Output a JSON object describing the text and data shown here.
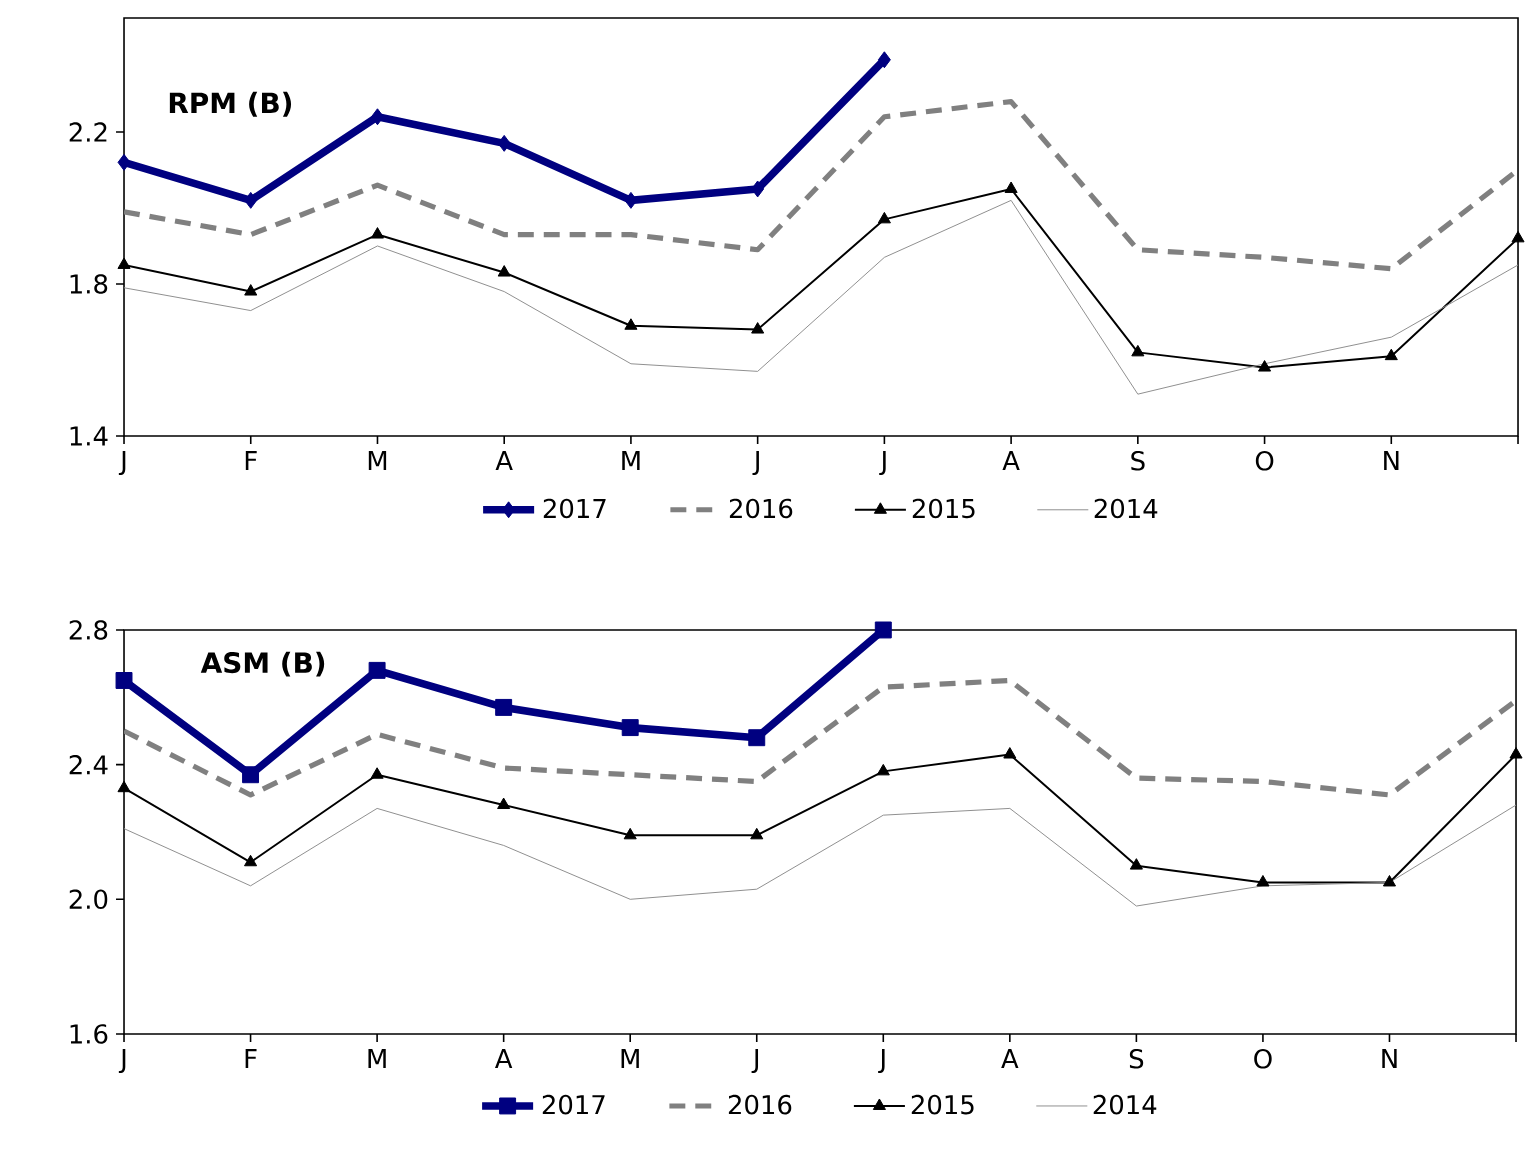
{
  "chart_data": [
    {
      "type": "line",
      "title": "RPM (B)",
      "categories": [
        "J",
        "F",
        "M",
        "A",
        "M",
        "J",
        "J",
        "A",
        "S",
        "O",
        "N",
        null
      ],
      "ylim": [
        1.4,
        2.5
      ],
      "yticks": [
        1.4,
        1.8,
        2.2
      ],
      "legend": "bottom",
      "grid": false,
      "series": [
        {
          "name": "2017",
          "color": "#000080",
          "marker": "diamond",
          "line_style": "solid",
          "values": [
            2.12,
            2.02,
            2.24,
            2.17,
            2.02,
            2.05,
            2.39,
            null,
            null,
            null,
            null,
            null
          ]
        },
        {
          "name": "2016",
          "color": "#808080",
          "marker": "none",
          "line_style": "dashed",
          "values": [
            1.99,
            1.93,
            2.06,
            1.93,
            1.93,
            1.89,
            2.24,
            2.28,
            1.89,
            1.87,
            1.84,
            2.1
          ]
        },
        {
          "name": "2015",
          "color": "#000000",
          "marker": "triangle",
          "line_style": "solid",
          "values": [
            1.85,
            1.78,
            1.93,
            1.83,
            1.69,
            1.68,
            1.97,
            2.05,
            1.62,
            1.58,
            1.61,
            1.92
          ]
        },
        {
          "name": "2014",
          "color": "#909090",
          "marker": "none",
          "line_style": "solid",
          "values": [
            1.79,
            1.73,
            1.9,
            1.78,
            1.59,
            1.57,
            1.87,
            2.02,
            1.51,
            1.59,
            1.66,
            1.85
          ]
        }
      ]
    },
    {
      "type": "line",
      "title": "ASM (B)",
      "categories": [
        "J",
        "F",
        "M",
        "A",
        "M",
        "J",
        "J",
        "A",
        "S",
        "O",
        "N",
        null
      ],
      "ylim": [
        1.6,
        2.8
      ],
      "yticks": [
        {
          "value": 1.6,
          "label": "1.6"
        },
        {
          "value": 2.0,
          "label": "2.0"
        },
        {
          "value": 2.4,
          "label": "2.4"
        },
        {
          "value": 2.8,
          "label": "2.8"
        }
      ],
      "legend": "bottom",
      "grid": false,
      "series": [
        {
          "name": "2017",
          "color": "#000080",
          "marker": "square",
          "line_style": "solid",
          "values": [
            2.65,
            2.37,
            2.68,
            2.57,
            2.51,
            2.48,
            2.8,
            null,
            null,
            null,
            null,
            null
          ]
        },
        {
          "name": "2016",
          "color": "#808080",
          "marker": "none",
          "line_style": "dashed",
          "values": [
            2.5,
            2.31,
            2.49,
            2.39,
            2.37,
            2.35,
            2.63,
            2.65,
            2.36,
            2.35,
            2.31,
            2.59
          ]
        },
        {
          "name": "2015",
          "color": "#000000",
          "marker": "triangle",
          "line_style": "solid",
          "values": [
            2.33,
            2.11,
            2.37,
            2.28,
            2.19,
            2.19,
            2.38,
            2.43,
            2.1,
            2.05,
            2.05,
            2.43
          ]
        },
        {
          "name": "2014",
          "color": "#909090",
          "marker": "none",
          "line_style": "solid",
          "values": [
            2.21,
            2.04,
            2.27,
            2.16,
            2.0,
            2.03,
            2.25,
            2.27,
            1.98,
            2.04,
            2.05,
            2.28
          ]
        }
      ]
    }
  ]
}
